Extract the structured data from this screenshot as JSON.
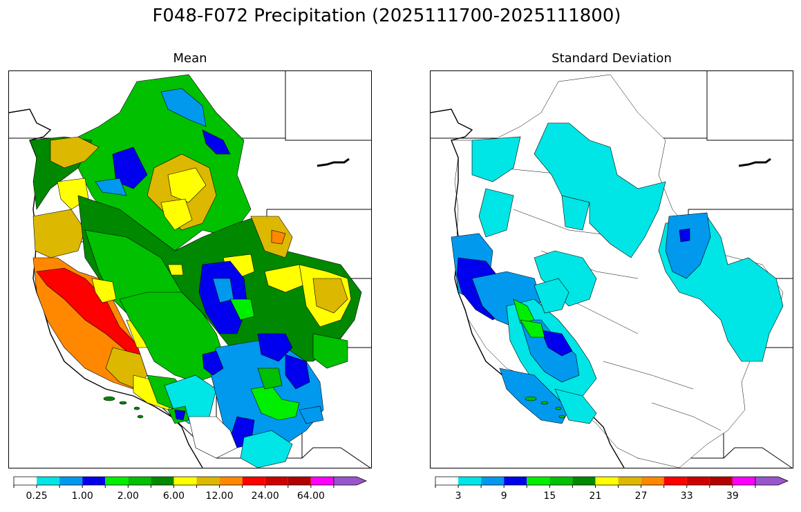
{
  "title": "F048-F072 Precipitation (2025111700-2025111800)",
  "panels": [
    {
      "id": "mean",
      "title": "Mean",
      "colorbar": {
        "colors": [
          "#ffffff",
          "#00e5e5",
          "#0099ee",
          "#0000ee",
          "#00ee00",
          "#00c000",
          "#008800",
          "#ffff00",
          "#ddb800",
          "#ff8800",
          "#ff0000",
          "#cc0000",
          "#b30000",
          "#ff00ff",
          "#9955cc"
        ],
        "tick_labels": [
          "0.25",
          "1.00",
          "2.00",
          "6.00",
          "12.00",
          "24.00",
          "64.00"
        ],
        "tick_bins": [
          1,
          3,
          5,
          7,
          9,
          11,
          13
        ]
      }
    },
    {
      "id": "std",
      "title": "Standard Deviation",
      "colorbar": {
        "colors": [
          "#ffffff",
          "#00e5e5",
          "#0099ee",
          "#0000ee",
          "#00ee00",
          "#00c000",
          "#008800",
          "#ffff00",
          "#ddb800",
          "#ff8800",
          "#ff0000",
          "#cc0000",
          "#b30000",
          "#ff00ff",
          "#9955cc"
        ],
        "tick_labels": [
          "3",
          "9",
          "15",
          "21",
          "27",
          "33",
          "39"
        ],
        "tick_bins": [
          1,
          3,
          5,
          7,
          9,
          11,
          13
        ]
      }
    }
  ]
}
